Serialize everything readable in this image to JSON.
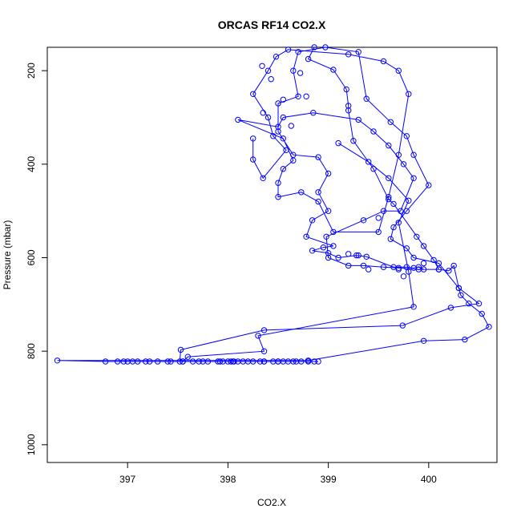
{
  "chart_data": {
    "type": "line",
    "title": "ORCAS RF14 CO2.X",
    "xlabel": "CO2.X",
    "ylabel": "Pressure (mbar)",
    "xlim": [
      396.2,
      400.68
    ],
    "ylim": [
      1038,
      150
    ],
    "y_inverted": true,
    "x_ticks": [
      397,
      398,
      399,
      400
    ],
    "y_ticks": [
      200,
      400,
      600,
      800,
      1000
    ],
    "grid": false,
    "series": [
      {
        "color": "#0000ff",
        "marker": "open-circle",
        "line": true,
        "points": [
          [
            398.86,
            150
          ],
          [
            398.8,
            175
          ],
          [
            399.05,
            198
          ],
          [
            399.18,
            240
          ],
          [
            399.2,
            275
          ],
          [
            399.2,
            285
          ],
          [
            399.25,
            350
          ],
          [
            399.45,
            410
          ],
          [
            399.6,
            475
          ],
          [
            399.65,
            485
          ],
          [
            399.95,
            575
          ],
          [
            400.05,
            605
          ],
          [
            400.1,
            625
          ],
          [
            400.2,
            628
          ],
          [
            400.25,
            617
          ],
          [
            400.3,
            665
          ],
          [
            400.32,
            680
          ],
          [
            400.4,
            698
          ],
          [
            400.53,
            720
          ],
          [
            400.6,
            748
          ],
          [
            400.36,
            775
          ],
          [
            399.95,
            778
          ],
          [
            398.8,
            820
          ],
          [
            396.3,
            820
          ],
          [
            396.78,
            822
          ],
          [
            396.9,
            822
          ],
          [
            396.96,
            822
          ],
          [
            397.0,
            822
          ],
          [
            397.05,
            822
          ],
          [
            397.1,
            822
          ],
          [
            397.18,
            822
          ],
          [
            397.22,
            822
          ],
          [
            397.3,
            822
          ],
          [
            397.4,
            822
          ],
          [
            397.43,
            822
          ],
          [
            397.55,
            822
          ],
          [
            397.65,
            822
          ],
          [
            397.71,
            822
          ],
          [
            397.75,
            822
          ],
          [
            397.8,
            822
          ],
          [
            397.92,
            822
          ],
          [
            397.95,
            822
          ],
          [
            398.0,
            822
          ],
          [
            398.03,
            822
          ],
          [
            398.06,
            822
          ],
          [
            398.1,
            822
          ],
          [
            398.15,
            822
          ],
          [
            398.25,
            822
          ],
          [
            398.32,
            822
          ],
          [
            398.36,
            822
          ],
          [
            398.45,
            822
          ],
          [
            398.5,
            822
          ],
          [
            398.55,
            822
          ],
          [
            398.65,
            822
          ],
          [
            398.68,
            822
          ],
          [
            398.73,
            822
          ],
          [
            398.8,
            822
          ],
          [
            398.86,
            822
          ],
          [
            398.9,
            822
          ],
          [
            398.6,
            822
          ],
          [
            398.5,
            822
          ],
          [
            398.36,
            822
          ],
          [
            398.2,
            822
          ],
          [
            398.05,
            822
          ],
          [
            397.9,
            822
          ],
          [
            397.52,
            822
          ],
          [
            397.53,
            797
          ],
          [
            398.36,
            755
          ],
          [
            399.74,
            745
          ],
          [
            400.22,
            707
          ],
          [
            400.5,
            698
          ],
          [
            400.3,
            665
          ],
          [
            400.1,
            612
          ],
          [
            399.85,
            600
          ],
          [
            399.78,
            580
          ],
          [
            399.62,
            560
          ],
          [
            399.65,
            535
          ],
          [
            399.78,
            500
          ],
          [
            400.0,
            445
          ],
          [
            399.85,
            380
          ],
          [
            399.78,
            340
          ],
          [
            399.62,
            310
          ],
          [
            399.38,
            260
          ],
          [
            399.3,
            160
          ],
          [
            398.97,
            150
          ],
          [
            398.7,
            160
          ],
          [
            398.65,
            200
          ],
          [
            398.7,
            255
          ],
          [
            398.5,
            270
          ],
          [
            398.5,
            330
          ],
          [
            398.65,
            380
          ],
          [
            398.9,
            385
          ],
          [
            399.0,
            420
          ],
          [
            398.9,
            460
          ],
          [
            399.0,
            500
          ],
          [
            398.84,
            520
          ],
          [
            398.78,
            555
          ],
          [
            399.05,
            575
          ],
          [
            398.95,
            578
          ],
          [
            398.84,
            585
          ],
          [
            399.0,
            590
          ],
          [
            399.1,
            600
          ],
          [
            399.28,
            595
          ],
          [
            399.38,
            598
          ],
          [
            399.65,
            620
          ],
          [
            399.78,
            620
          ],
          [
            399.85,
            622
          ],
          [
            399.9,
            620
          ],
          [
            399.95,
            625
          ],
          [
            400.1,
            625
          ],
          [
            399.9,
            625
          ],
          [
            399.7,
            622
          ],
          [
            399.55,
            620
          ],
          [
            399.35,
            617
          ],
          [
            399.2,
            617
          ],
          [
            399.0,
            600
          ],
          [
            398.98,
            555
          ],
          [
            399.35,
            520
          ],
          [
            399.55,
            500
          ],
          [
            399.72,
            500
          ],
          [
            399.85,
            430
          ],
          [
            399.75,
            400
          ],
          [
            399.6,
            360
          ],
          [
            399.45,
            330
          ],
          [
            399.3,
            305
          ],
          [
            398.85,
            290
          ],
          [
            398.55,
            300
          ],
          [
            398.5,
            320
          ],
          [
            398.1,
            305
          ],
          [
            398.55,
            345
          ],
          [
            398.65,
            392
          ],
          [
            398.55,
            410
          ],
          [
            398.5,
            440
          ],
          [
            398.5,
            470
          ],
          [
            398.73,
            460
          ],
          [
            398.9,
            480
          ],
          [
            399.05,
            545
          ],
          [
            399.5,
            545
          ],
          [
            399.6,
            470
          ],
          [
            399.7,
            380
          ],
          [
            399.8,
            250
          ],
          [
            399.7,
            200
          ],
          [
            399.55,
            180
          ],
          [
            399.2,
            165
          ],
          [
            398.6,
            155
          ],
          [
            398.48,
            170
          ],
          [
            398.4,
            200
          ],
          [
            398.25,
            250
          ],
          [
            398.4,
            300
          ],
          [
            398.45,
            340
          ],
          [
            398.58,
            370
          ],
          [
            398.35,
            430
          ],
          [
            398.25,
            390
          ],
          [
            398.25,
            345
          ]
        ]
      },
      {
        "color": "#0000ff",
        "marker": "open-circle",
        "line": true,
        "points": [
          [
            399.1,
            355
          ],
          [
            399.4,
            395
          ],
          [
            399.6,
            430
          ],
          [
            399.8,
            478
          ],
          [
            399.7,
            525
          ],
          [
            399.8,
            630
          ],
          [
            399.85,
            705
          ],
          [
            398.3,
            767
          ],
          [
            398.36,
            800
          ],
          [
            397.6,
            812
          ],
          [
            397.55,
            822
          ]
        ]
      },
      {
        "color": "#0000ff",
        "marker": "open-circle",
        "line": false,
        "points": [
          [
            398.34,
            190
          ],
          [
            398.43,
            218
          ],
          [
            398.72,
            205
          ],
          [
            398.78,
            255
          ],
          [
            398.55,
            262
          ],
          [
            398.35,
            290
          ],
          [
            398.63,
            318
          ],
          [
            399.2,
            592
          ],
          [
            399.3,
            595
          ],
          [
            399.4,
            625
          ],
          [
            399.7,
            625
          ],
          [
            399.75,
            640
          ],
          [
            399.95,
            612
          ],
          [
            399.88,
            555
          ],
          [
            399.5,
            515
          ]
        ]
      }
    ]
  }
}
